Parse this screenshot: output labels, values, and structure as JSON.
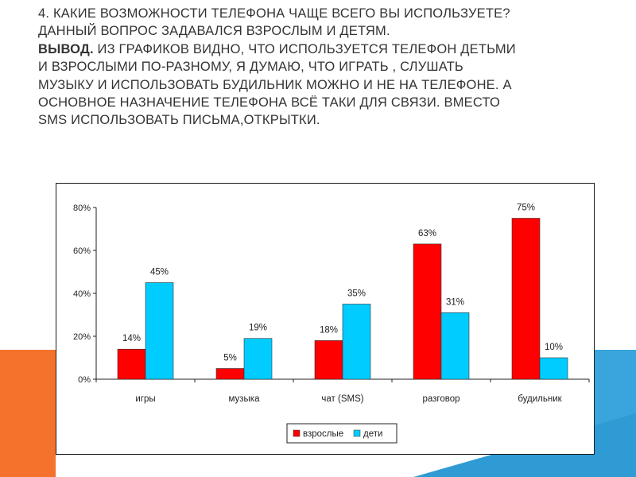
{
  "heading": {
    "line1": "4. Какие возможности телефона чаще всего вы используете?",
    "line2": "Данный вопрос задавался взрослым и детям.",
    "conclusion_label": "Вывод.",
    "conclusion_line1": " Из графиков видно, что используется телефон детьми",
    "conclusion_line2": "и взрослыми по-разному, я думаю, что играть , слушать",
    "conclusion_line3": "музыку и использовать будильник можно и не на телефоне.  А",
    "conclusion_line4": "основное назначение телефона всё таки для связи. Вместо",
    "conclusion_line5": "SMS использовать письма,открытки."
  },
  "colors": {
    "series_adults": "#ff0000",
    "series_children": "#00ccff",
    "deco_orange": "#f4722b",
    "deco_blue": "#3aa5dc"
  },
  "chart_data": {
    "type": "bar",
    "title": "",
    "xlabel": "",
    "ylabel": "",
    "categories": [
      "игры",
      "музыка",
      "чат (SMS)",
      "разговор",
      "будильник"
    ],
    "series": [
      {
        "name": "взрослые",
        "values": [
          14,
          5,
          18,
          63,
          75
        ],
        "labels": [
          "14%",
          "5%",
          "18%",
          "63%",
          "75%"
        ]
      },
      {
        "name": "дети",
        "values": [
          45,
          19,
          35,
          31,
          10
        ],
        "labels": [
          "45%",
          "19%",
          "35%",
          "31%",
          "10%"
        ]
      }
    ],
    "ylim": [
      0,
      80
    ],
    "yticks": [
      0,
      20,
      40,
      60,
      80
    ],
    "ytick_labels": [
      "0%",
      "20%",
      "40%",
      "60%",
      "80%"
    ],
    "grid": false,
    "legend": "bottom"
  }
}
